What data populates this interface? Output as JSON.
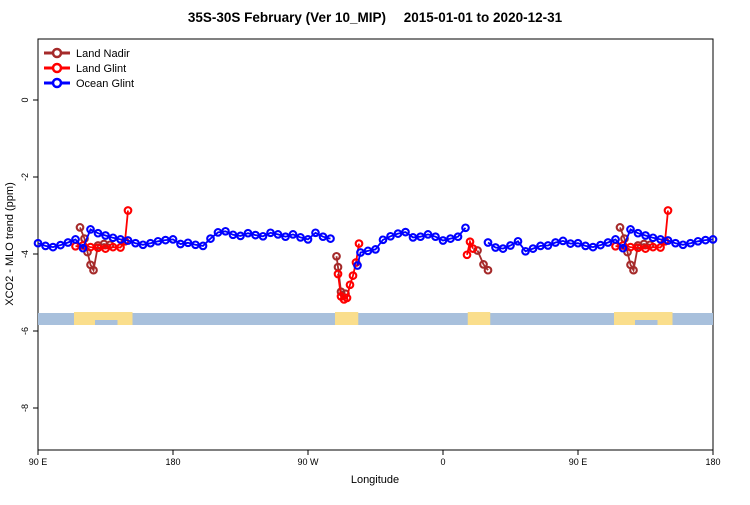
{
  "title": {
    "main": "35S-30S February (Ver 10_MIP)",
    "dates": "2015-01-01 to 2020-12-31"
  },
  "axes": {
    "x": {
      "label": "Longitude",
      "ticks": [
        {
          "display": 90,
          "label": "90 E"
        },
        {
          "display": 180,
          "label": "180"
        },
        {
          "display": 270,
          "label": "90 W"
        },
        {
          "display": 360,
          "label": "0"
        },
        {
          "display": 450,
          "label": "90 E"
        },
        {
          "display": 540,
          "label": "180"
        }
      ]
    },
    "y": {
      "label": "XCO2 - MLO trend (ppm)",
      "ticks": [
        {
          "value": 0,
          "label": "0"
        },
        {
          "value": -2,
          "label": "-2"
        },
        {
          "value": -4,
          "label": "-4"
        },
        {
          "value": -6,
          "label": "-6"
        },
        {
          "value": -8,
          "label": "-8"
        }
      ]
    }
  },
  "legend": {
    "items": [
      {
        "label": "Land Nadir",
        "color": "#A52A2A"
      },
      {
        "label": "Land Glint",
        "color": "#FF0000"
      },
      {
        "label": "Ocean Glint",
        "color": "#0000FF"
      }
    ]
  },
  "chart_data": {
    "type": "line",
    "title": "35S-30S February (Ver 10_MIP)  2015-01-01 to 2020-12-31",
    "xlabel": "Longitude",
    "ylabel": "XCO2 - MLO trend (ppm)",
    "x_axis_note": "longitude axis starts at 90E, wraps eastward around the globe to 180; data for 90E-180 is drawn at both ends",
    "x_display_domain": [
      90,
      540
    ],
    "ylim": [
      -9.1,
      0.45
    ],
    "grid": false,
    "legend_position": "top-left",
    "series": [
      {
        "name": "Land Nadir",
        "color": "#A52A2A",
        "points": [
          [
            118,
            -3.31
          ],
          [
            121,
            -3.6
          ],
          [
            123,
            -3.95
          ],
          [
            125,
            -4.28
          ],
          [
            127,
            -4.42
          ],
          [
            130,
            -3.78
          ],
          [
            134,
            -3.74
          ],
          [
            138,
            -3.76
          ],
          [
            -71,
            -4.06
          ],
          [
            -70,
            -4.34
          ],
          [
            -68,
            -4.98
          ],
          [
            -65,
            -5.03
          ],
          [
            23,
            -3.91
          ],
          [
            27,
            -4.27
          ],
          [
            30,
            -4.42
          ]
        ]
      },
      {
        "name": "Land Glint",
        "color": "#FF0000",
        "points": [
          [
            115,
            -3.8
          ],
          [
            120,
            -3.78
          ],
          [
            125,
            -3.82
          ],
          [
            130,
            -3.84
          ],
          [
            135,
            -3.86
          ],
          [
            140,
            -3.82
          ],
          [
            145,
            -3.83
          ],
          [
            148,
            -3.67
          ],
          [
            150,
            -2.87
          ],
          [
            -70,
            -4.52
          ],
          [
            -68,
            -5.1
          ],
          [
            -66,
            -5.18
          ],
          [
            -64,
            -5.14
          ],
          [
            -62,
            -4.8
          ],
          [
            -60,
            -4.56
          ],
          [
            -58,
            -4.22
          ],
          [
            -56,
            -3.73
          ],
          [
            16,
            -4.02
          ],
          [
            18,
            -3.68
          ],
          [
            20,
            -3.86
          ]
        ]
      },
      {
        "name": "Ocean Glint",
        "color": "#0000FF",
        "points": [
          [
            90,
            -3.72
          ],
          [
            95,
            -3.79
          ],
          [
            100,
            -3.82
          ],
          [
            105,
            -3.77
          ],
          [
            110,
            -3.7
          ],
          [
            115,
            -3.62
          ],
          [
            120,
            -3.85
          ],
          [
            125,
            -3.36
          ],
          [
            130,
            -3.46
          ],
          [
            135,
            -3.52
          ],
          [
            140,
            -3.58
          ],
          [
            145,
            -3.62
          ],
          [
            150,
            -3.65
          ],
          [
            155,
            -3.72
          ],
          [
            160,
            -3.76
          ],
          [
            165,
            -3.72
          ],
          [
            170,
            -3.67
          ],
          [
            175,
            -3.64
          ],
          [
            180,
            -3.62
          ],
          [
            -175,
            -3.74
          ],
          [
            -170,
            -3.71
          ],
          [
            -165,
            -3.76
          ],
          [
            -160,
            -3.79
          ],
          [
            -155,
            -3.6
          ],
          [
            -150,
            -3.44
          ],
          [
            -145,
            -3.41
          ],
          [
            -140,
            -3.5
          ],
          [
            -135,
            -3.53
          ],
          [
            -130,
            -3.46
          ],
          [
            -125,
            -3.51
          ],
          [
            -120,
            -3.54
          ],
          [
            -115,
            -3.45
          ],
          [
            -110,
            -3.49
          ],
          [
            -105,
            -3.55
          ],
          [
            -100,
            -3.49
          ],
          [
            -95,
            -3.57
          ],
          [
            -90,
            -3.62
          ],
          [
            -85,
            -3.45
          ],
          [
            -80,
            -3.55
          ],
          [
            -75,
            -3.6
          ],
          [
            -57,
            -4.3
          ],
          [
            -55,
            -3.96
          ],
          [
            -50,
            -3.92
          ],
          [
            -45,
            -3.88
          ],
          [
            -40,
            -3.63
          ],
          [
            -35,
            -3.54
          ],
          [
            -30,
            -3.47
          ],
          [
            -25,
            -3.43
          ],
          [
            -20,
            -3.57
          ],
          [
            -15,
            -3.55
          ],
          [
            -10,
            -3.49
          ],
          [
            -5,
            -3.55
          ],
          [
            0,
            -3.65
          ],
          [
            5,
            -3.6
          ],
          [
            10,
            -3.55
          ],
          [
            15,
            -3.32
          ],
          [
            30,
            -3.7
          ],
          [
            35,
            -3.83
          ],
          [
            40,
            -3.86
          ],
          [
            45,
            -3.78
          ],
          [
            50,
            -3.67
          ],
          [
            55,
            -3.93
          ],
          [
            60,
            -3.86
          ],
          [
            65,
            -3.79
          ],
          [
            70,
            -3.78
          ],
          [
            75,
            -3.7
          ],
          [
            80,
            -3.66
          ],
          [
            85,
            -3.73
          ]
        ]
      }
    ]
  },
  "map_strip": {
    "description": "land/ocean mask of the 35S-30S latitude band",
    "ocean_color": "#A8C0DC",
    "land_color": "#FADE8C",
    "land_lon_ranges": [
      [
        114,
        153
      ],
      [
        -72,
        -56.5
      ],
      [
        16.5,
        31.5
      ]
    ],
    "ocean_notch_lon_ranges": [
      [
        128,
        143
      ]
    ]
  }
}
